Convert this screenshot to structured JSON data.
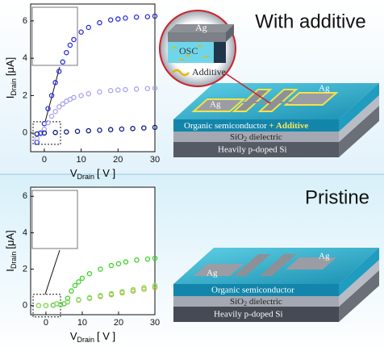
{
  "chart_data": [
    {
      "type": "scatter",
      "y_label": {
        "main": "I",
        "sub": "Drain",
        "unit": "[μA]"
      },
      "x_label": {
        "main": "V",
        "sub": "Drain",
        "unit": "[ V ]"
      },
      "xlim": [
        -3.7,
        30
      ],
      "ylim": [
        -1,
        6.9
      ],
      "xticks": [
        0,
        10,
        20,
        30
      ],
      "yticks": [
        0,
        2,
        4,
        6
      ],
      "series": [
        {
          "color": "#2a2ee0",
          "x": [
            -2,
            -1,
            0,
            1,
            2,
            3,
            4,
            5,
            6,
            7,
            8,
            10,
            12,
            15,
            18,
            20,
            22,
            25,
            28,
            30
          ],
          "values": [
            -0.5,
            0,
            0.5,
            1.3,
            2.0,
            2.7,
            3.3,
            3.8,
            4.3,
            4.7,
            5.0,
            5.4,
            5.65,
            5.9,
            6.05,
            6.1,
            6.15,
            6.2,
            6.22,
            6.25
          ]
        },
        {
          "color": "#a9a2f0",
          "x": [
            -2,
            -1,
            0,
            1,
            2,
            3,
            4,
            5,
            6,
            7,
            8,
            10,
            12,
            15,
            18,
            20,
            22,
            25,
            28,
            30
          ],
          "values": [
            -0.3,
            -0.05,
            0.2,
            0.55,
            0.9,
            1.15,
            1.4,
            1.55,
            1.7,
            1.8,
            1.9,
            2.0,
            2.1,
            2.2,
            2.27,
            2.3,
            2.32,
            2.35,
            2.38,
            2.4
          ]
        },
        {
          "color": "#0a1a80",
          "x": [
            -2,
            0,
            3,
            6,
            9,
            12,
            15,
            18,
            21,
            24,
            27,
            30
          ],
          "values": [
            -0.05,
            0,
            0.03,
            0.06,
            0.09,
            0.12,
            0.15,
            0.18,
            0.21,
            0.24,
            0.27,
            0.3
          ]
        }
      ]
    },
    {
      "type": "scatter",
      "y_label": {
        "main": "I",
        "sub": "Drain",
        "unit": "[μA]"
      },
      "x_label": {
        "main": "V",
        "sub": "Drain",
        "unit": "[ V ]"
      },
      "xlim": [
        -4.2,
        30
      ],
      "ylim": [
        -0.5,
        6.5
      ],
      "xticks": [
        0,
        10,
        20,
        30
      ],
      "yticks": [
        0,
        2,
        4,
        6
      ],
      "series": [
        {
          "color": "#3fd12a",
          "x": [
            -2,
            0,
            2,
            4,
            5,
            6,
            7,
            8,
            9,
            10,
            12,
            15,
            18,
            20,
            22,
            25,
            28,
            30
          ],
          "values": [
            0,
            0,
            0.02,
            0.05,
            0.1,
            0.4,
            0.8,
            1.1,
            1.3,
            1.5,
            1.75,
            2.0,
            2.2,
            2.3,
            2.4,
            2.5,
            2.55,
            2.6
          ]
        },
        {
          "color": "#b5b21e",
          "x": [
            -2,
            0,
            3,
            6,
            9,
            12,
            15,
            18,
            21,
            24,
            27,
            30
          ],
          "values": [
            0,
            0,
            0.1,
            0.2,
            0.3,
            0.4,
            0.5,
            0.6,
            0.7,
            0.8,
            0.9,
            1.0
          ]
        },
        {
          "color": "#86e070",
          "x": [
            -2,
            0,
            3,
            6,
            9,
            12,
            15,
            18,
            21,
            24,
            27,
            30
          ],
          "values": [
            0,
            0,
            0.11,
            0.22,
            0.33,
            0.44,
            0.55,
            0.66,
            0.77,
            0.88,
            0.99,
            1.1
          ]
        }
      ]
    }
  ],
  "diagrams": {
    "top": {
      "title": "With additive",
      "electrode_left": "Ag",
      "electrode_right": "Ag",
      "layer_osc": "Organic semiconductor",
      "additive_tag": "+ Additive",
      "layer_oxide": {
        "main": "SiO",
        "sub": "2",
        "rest": " dielectric"
      },
      "layer_si": "Heavily p-doped Si",
      "inset": {
        "metal": "Ag",
        "osc": "OSC",
        "legend": "Additive"
      }
    },
    "bottom": {
      "title": "Pristine",
      "electrode_left": "Ag",
      "electrode_right": "Ag",
      "layer_osc": "Organic semiconductor",
      "layer_oxide": {
        "main": "SiO",
        "sub": "2",
        "rest": " dielectric"
      },
      "layer_si": "Heavily p-doped Si"
    }
  }
}
